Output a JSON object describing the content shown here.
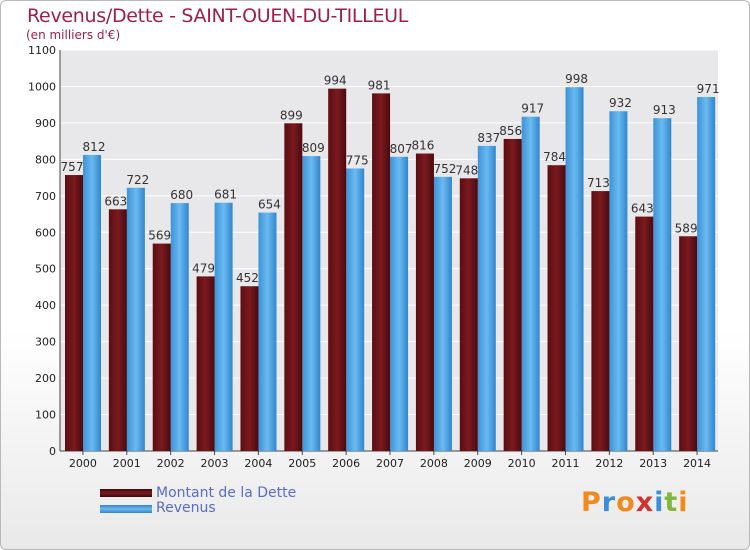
{
  "title": "Revenus/Dette - SAINT-OUEN-DU-TILLEUL",
  "subtitle": "(en milliers d'€)",
  "legend": {
    "debt_label": "Montant de la Dette",
    "revenue_label": "Revenus"
  },
  "logo_text": "Proxiti",
  "colors": {
    "debt": "#7a1a1f",
    "revenue": "#4a9fe0",
    "title": "#a11d4e",
    "logo": [
      "#f08a1c",
      "#3c8fd6",
      "#f08a1c",
      "#d03030",
      "#3c8fd6",
      "#7fb83a",
      "#f08a1c"
    ]
  },
  "chart_data": {
    "type": "bar",
    "categories": [
      "2000",
      "2001",
      "2002",
      "2003",
      "2004",
      "2005",
      "2006",
      "2007",
      "2008",
      "2009",
      "2010",
      "2011",
      "2012",
      "2013",
      "2014"
    ],
    "series": [
      {
        "name": "Montant de la Dette",
        "values": [
          757,
          663,
          569,
          479,
          452,
          899,
          994,
          981,
          816,
          748,
          856,
          784,
          713,
          643,
          589
        ]
      },
      {
        "name": "Revenus",
        "values": [
          812,
          722,
          680,
          681,
          654,
          809,
          775,
          807,
          752,
          837,
          917,
          998,
          932,
          913,
          971
        ]
      }
    ],
    "ylim": [
      0,
      1100
    ],
    "yticks": [
      0,
      100,
      200,
      300,
      400,
      500,
      600,
      700,
      800,
      900,
      1000,
      1100
    ],
    "grid": true,
    "legend_position": "bottom-left"
  }
}
